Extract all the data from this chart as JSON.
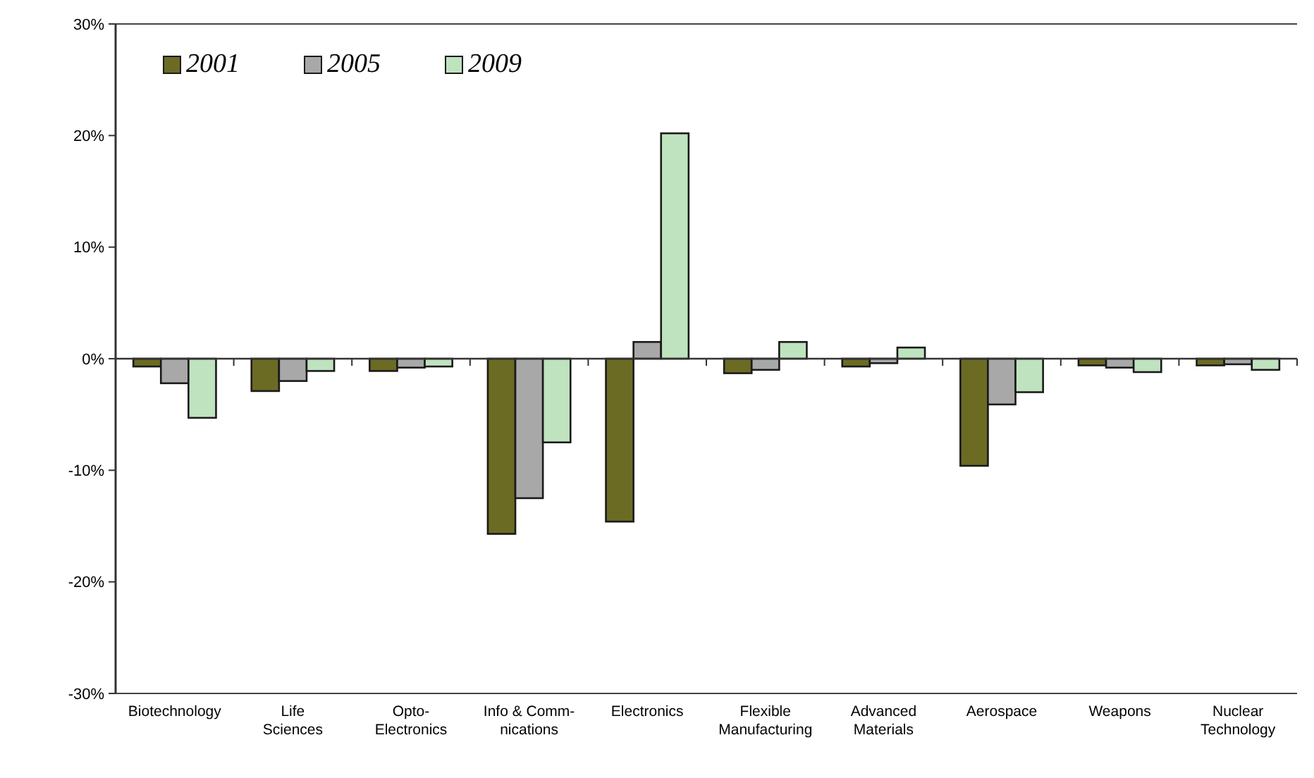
{
  "chart_data": {
    "type": "bar",
    "categories": [
      "Biotechnology",
      "Life\nSciences",
      "Opto-\nElectronics",
      "Info & Comm-\nnications",
      "Electronics",
      "Flexible\nManufacturing",
      "Advanced\nMaterials",
      "Aerospace",
      "Weapons",
      "Nuclear\nTechnology"
    ],
    "series": [
      {
        "name": "2001",
        "color": "#6b6b24",
        "values": [
          -0.7,
          -2.9,
          -1.1,
          -15.7,
          -14.6,
          -1.3,
          -0.7,
          -9.6,
          -0.6,
          -0.6
        ]
      },
      {
        "name": "2005",
        "color": "#a8a8a8",
        "values": [
          -2.2,
          -2.0,
          -0.8,
          -12.5,
          1.5,
          -1.0,
          -0.4,
          -4.1,
          -0.8,
          -0.5
        ]
      },
      {
        "name": "2009",
        "color": "#bfe3bf",
        "values": [
          -5.3,
          -1.1,
          -0.7,
          -7.5,
          20.2,
          1.5,
          1.0,
          -3.0,
          -1.2,
          -1.0
        ]
      }
    ],
    "ylim": [
      -30,
      30
    ],
    "yticks": [
      {
        "value": -30,
        "label": "-30%"
      },
      {
        "value": -20,
        "label": "-20%"
      },
      {
        "value": -10,
        "label": "-10%"
      },
      {
        "value": 0,
        "label": "0%"
      },
      {
        "value": 10,
        "label": "10%"
      },
      {
        "value": 20,
        "label": "20%"
      },
      {
        "value": 30,
        "label": "30%"
      }
    ],
    "legend": "top left"
  }
}
